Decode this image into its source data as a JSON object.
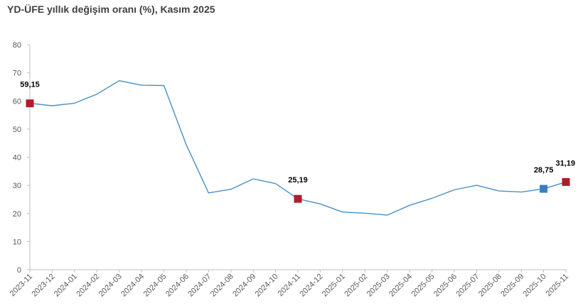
{
  "chart_data": {
    "type": "line",
    "title": "YD-ÜFE yıllık değişim oranı (%), Kasım 2025",
    "xlabel": "",
    "ylabel": "",
    "ylim": [
      0,
      80
    ],
    "yticks": [
      0,
      10,
      20,
      30,
      40,
      50,
      60,
      70,
      80
    ],
    "grid": false,
    "categories": [
      "2023-11",
      "2023-12",
      "2024-01",
      "2024-02",
      "2024-03",
      "2024-04",
      "2024-05",
      "2024-06",
      "2024-07",
      "2024-08",
      "2024-09",
      "2024-10",
      "2024-11",
      "2024-12",
      "2025-01",
      "2025-02",
      "2025-03",
      "2025-04",
      "2025-05",
      "2025-06",
      "2025-07",
      "2025-08",
      "2025-09",
      "2025-10",
      "2025-11"
    ],
    "series": [
      {
        "values": [
          59.15,
          58.3,
          59.2,
          62.4,
          67.2,
          65.6,
          65.5,
          44.5,
          27.3,
          28.6,
          32.3,
          30.6,
          25.19,
          23.4,
          20.5,
          20.1,
          19.4,
          22.9,
          25.4,
          28.4,
          30.0,
          28.0,
          27.6,
          28.75,
          31.19
        ],
        "color": "#4a90c8"
      }
    ],
    "highlights": [
      {
        "category": "2023-11",
        "value": 59.15,
        "label": "59,15",
        "color": "#b01c2e"
      },
      {
        "category": "2024-11",
        "value": 25.19,
        "label": "25,19",
        "color": "#b01c2e"
      },
      {
        "category": "2025-10",
        "value": 28.75,
        "label": "28,75",
        "color": "#3a7dc1"
      },
      {
        "category": "2025-11",
        "value": 31.19,
        "label": "31,19",
        "color": "#b01c2e"
      }
    ],
    "axis_color": "#bfbfbf"
  }
}
